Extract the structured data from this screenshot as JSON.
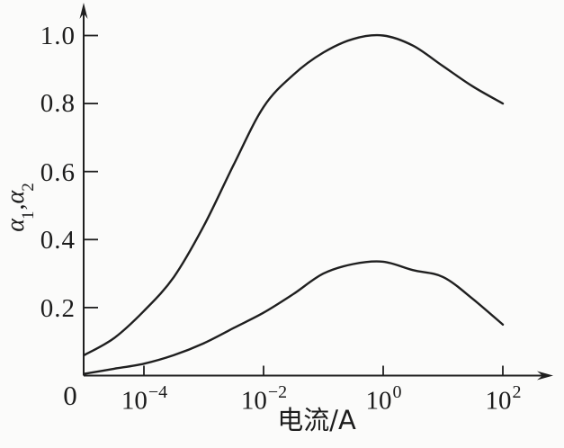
{
  "figure": {
    "background": "#fbfbfa",
    "line_color": "#1f1f1f"
  },
  "labels": {
    "ylabel_parts": {
      "alpha1": "α",
      "sub1": "1",
      "comma": ",",
      "alpha2": "α",
      "sub2": "2"
    },
    "xlabel": "电流/A"
  },
  "axes": {
    "y_tick_labels": [
      "1.0",
      "0.8",
      "0.6",
      "0.4",
      "0.2"
    ],
    "origin_label": "0",
    "x_tick_labels": [
      {
        "base": "10",
        "exp": "−4"
      },
      {
        "base": "10",
        "exp": "−2"
      },
      {
        "base": "10",
        "exp": "0"
      },
      {
        "base": "10",
        "exp": "2"
      }
    ]
  },
  "chart_data": {
    "type": "line",
    "title": "",
    "xlabel": "电流/A",
    "ylabel": "α₁,α₂",
    "x_scale": "log",
    "x_tick_values": [
      0.0001,
      0.01,
      1,
      100
    ],
    "y_tick_values": [
      0.2,
      0.4,
      0.6,
      0.8,
      1.0
    ],
    "xlim_log10": [
      -5,
      2.3
    ],
    "ylim": [
      0,
      1.07
    ],
    "grid": false,
    "legend": "none",
    "x_log10": [
      -5,
      -4.5,
      -4,
      -3.5,
      -3,
      -2.5,
      -2,
      -1.5,
      -1,
      -0.5,
      0,
      0.5,
      1,
      1.5,
      2
    ],
    "series": [
      {
        "name": "α1",
        "values": [
          0.06,
          0.11,
          0.19,
          0.29,
          0.44,
          0.62,
          0.79,
          0.885,
          0.95,
          0.99,
          1.0,
          0.97,
          0.91,
          0.85,
          0.8
        ]
      },
      {
        "name": "α2",
        "values": [
          0.005,
          0.02,
          0.035,
          0.06,
          0.095,
          0.14,
          0.185,
          0.24,
          0.3,
          0.328,
          0.335,
          0.31,
          0.29,
          0.225,
          0.15
        ]
      }
    ]
  }
}
